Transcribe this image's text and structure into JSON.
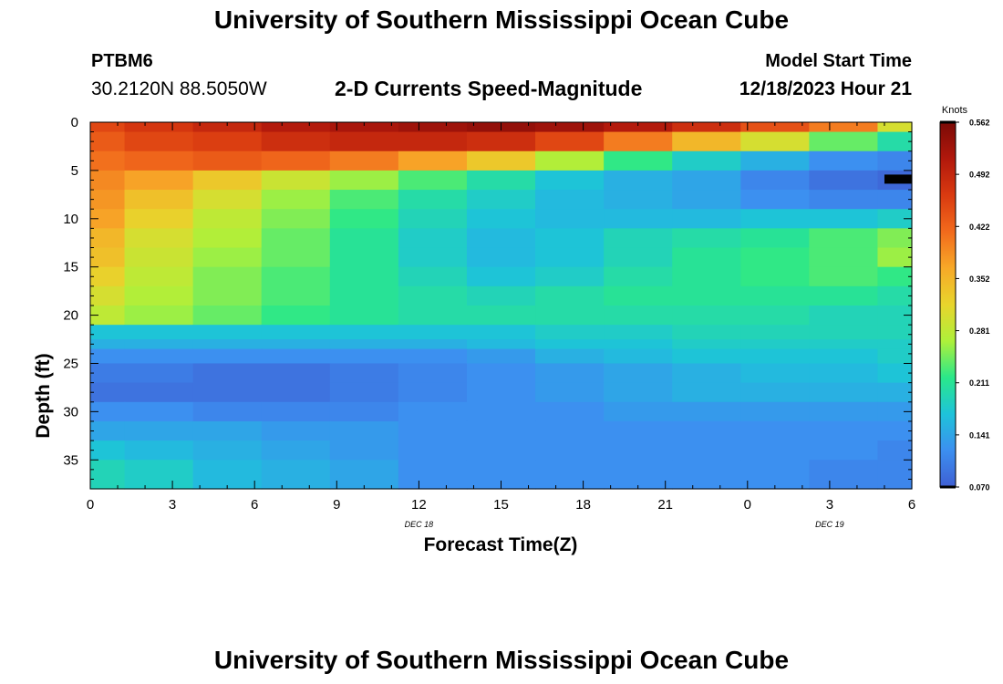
{
  "header": {
    "title": "University of Southern Mississippi Ocean Cube",
    "station_id": "PTBM6",
    "coords": "30.2120N  88.5050W",
    "subtitle": "2-D Currents Speed-Magnitude",
    "model_label": "Model Start Time",
    "model_time": "12/18/2023 Hour 21"
  },
  "footer": {
    "title": "University of Southern Mississippi Ocean Cube"
  },
  "colors": {
    "scale": [
      "#3f5fd3",
      "#3c8ff0",
      "#1ec3da",
      "#2ae88a",
      "#aef03a",
      "#e8d52c",
      "#f7a928",
      "#f26a1c",
      "#d93a10",
      "#b1180c",
      "#7a0a06"
    ]
  },
  "chart_data": {
    "type": "heatmap",
    "xlabel": "Forecast Time(Z)",
    "ylabel": "Depth (ft)",
    "x_ticks": [
      "0",
      "3",
      "6",
      "9",
      "12",
      "15",
      "18",
      "21",
      "0",
      "3",
      "6"
    ],
    "x_tick_hours": [
      0,
      3,
      6,
      9,
      12,
      15,
      18,
      21,
      24,
      27,
      30
    ],
    "xlim": [
      0,
      30
    ],
    "date_labels": [
      {
        "text": "DEC 18",
        "hour": 12
      },
      {
        "text": "DEC 19",
        "hour": 27
      }
    ],
    "y_ticks": [
      "0",
      "5",
      "10",
      "15",
      "20",
      "25",
      "30",
      "35"
    ],
    "y_tick_values": [
      0,
      5,
      10,
      15,
      20,
      25,
      30,
      35
    ],
    "ylim": [
      0,
      38
    ],
    "colorbar": {
      "label": "Knots",
      "ticks": [
        "0.562",
        "0.492",
        "0.422",
        "0.352",
        "0.281",
        "0.211",
        "0.141",
        "0.070"
      ],
      "min": 0.07,
      "max": 0.562
    },
    "col_edges": [
      0,
      1.25,
      3.75,
      6.25,
      8.75,
      11.25,
      13.75,
      16.25,
      18.75,
      21.25,
      23.75,
      26.25,
      28.75,
      30
    ],
    "depth_rows": [
      0,
      2,
      4,
      6,
      8,
      10,
      12,
      14,
      16,
      18,
      20,
      22,
      23,
      24,
      26,
      28,
      30,
      32,
      34,
      36
    ],
    "row_edges": [
      0,
      1,
      3,
      5,
      7,
      9,
      11,
      13,
      15,
      17,
      19,
      21,
      22.5,
      23.5,
      25,
      27,
      29,
      31,
      33,
      35,
      38
    ],
    "values": [
      [
        0.45,
        0.47,
        0.49,
        0.51,
        0.52,
        0.53,
        0.54,
        0.53,
        0.51,
        0.48,
        0.44,
        0.4,
        0.3
      ],
      [
        0.43,
        0.45,
        0.46,
        0.48,
        0.49,
        0.49,
        0.48,
        0.45,
        0.4,
        0.35,
        0.3,
        0.24,
        0.2
      ],
      [
        0.41,
        0.42,
        0.43,
        0.42,
        0.4,
        0.37,
        0.33,
        0.27,
        0.22,
        0.18,
        0.15,
        0.12,
        0.11
      ],
      [
        0.39,
        0.37,
        0.33,
        0.29,
        0.26,
        0.23,
        0.2,
        0.17,
        0.15,
        0.14,
        0.11,
        0.09,
        0.08
      ],
      [
        0.38,
        0.34,
        0.3,
        0.26,
        0.23,
        0.2,
        0.18,
        0.16,
        0.15,
        0.14,
        0.12,
        0.11,
        0.11
      ],
      [
        0.37,
        0.32,
        0.28,
        0.25,
        0.22,
        0.19,
        0.17,
        0.16,
        0.16,
        0.16,
        0.17,
        0.17,
        0.18
      ],
      [
        0.35,
        0.3,
        0.27,
        0.24,
        0.21,
        0.18,
        0.16,
        0.17,
        0.19,
        0.2,
        0.21,
        0.23,
        0.25
      ],
      [
        0.34,
        0.29,
        0.26,
        0.24,
        0.21,
        0.18,
        0.16,
        0.17,
        0.19,
        0.21,
        0.22,
        0.23,
        0.26
      ],
      [
        0.32,
        0.28,
        0.25,
        0.23,
        0.21,
        0.19,
        0.17,
        0.18,
        0.2,
        0.21,
        0.22,
        0.23,
        0.22
      ],
      [
        0.3,
        0.27,
        0.25,
        0.23,
        0.21,
        0.2,
        0.19,
        0.2,
        0.21,
        0.21,
        0.21,
        0.21,
        0.2
      ],
      [
        0.28,
        0.26,
        0.24,
        0.22,
        0.21,
        0.2,
        0.2,
        0.2,
        0.2,
        0.2,
        0.2,
        0.19,
        0.19
      ],
      [
        0.17,
        0.17,
        0.17,
        0.17,
        0.17,
        0.17,
        0.17,
        0.18,
        0.18,
        0.19,
        0.19,
        0.19,
        0.19
      ],
      [
        0.15,
        0.15,
        0.15,
        0.15,
        0.15,
        0.15,
        0.16,
        0.17,
        0.17,
        0.18,
        0.18,
        0.18,
        0.18
      ],
      [
        0.12,
        0.12,
        0.12,
        0.12,
        0.12,
        0.12,
        0.13,
        0.15,
        0.16,
        0.17,
        0.17,
        0.17,
        0.18
      ],
      [
        0.1,
        0.1,
        0.09,
        0.09,
        0.1,
        0.11,
        0.12,
        0.13,
        0.14,
        0.15,
        0.16,
        0.16,
        0.17
      ],
      [
        0.09,
        0.09,
        0.09,
        0.09,
        0.1,
        0.11,
        0.12,
        0.13,
        0.14,
        0.15,
        0.15,
        0.15,
        0.15
      ],
      [
        0.12,
        0.12,
        0.11,
        0.11,
        0.11,
        0.12,
        0.12,
        0.12,
        0.13,
        0.13,
        0.13,
        0.13,
        0.13
      ],
      [
        0.14,
        0.14,
        0.14,
        0.13,
        0.13,
        0.12,
        0.12,
        0.12,
        0.12,
        0.12,
        0.12,
        0.12,
        0.12
      ],
      [
        0.17,
        0.16,
        0.15,
        0.14,
        0.13,
        0.12,
        0.12,
        0.12,
        0.12,
        0.12,
        0.12,
        0.12,
        0.11
      ],
      [
        0.19,
        0.18,
        0.16,
        0.15,
        0.14,
        0.12,
        0.12,
        0.12,
        0.12,
        0.12,
        0.12,
        0.11,
        0.11
      ]
    ],
    "missing_marker": {
      "hour_start": 29,
      "hour_end": 30,
      "depth": 5.9
    }
  }
}
